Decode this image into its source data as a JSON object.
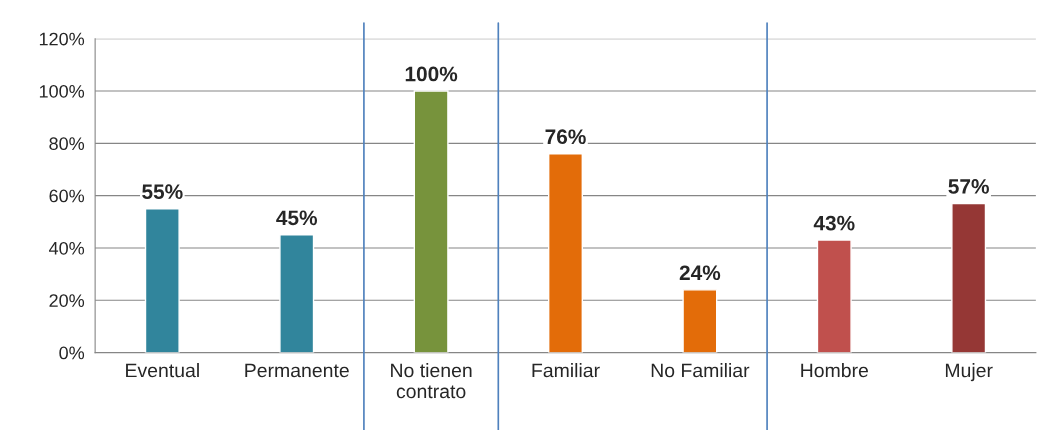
{
  "chart_data": {
    "type": "bar",
    "categories": [
      "Eventual",
      "Permanente",
      "No tienen\ncontrato",
      "Familiar",
      "No Familiar",
      "Hombre",
      "Mujer"
    ],
    "values": [
      55,
      45,
      100,
      76,
      24,
      43,
      57
    ],
    "colors": [
      "#31859c",
      "#31859c",
      "#77933c",
      "#e36c09",
      "#e36c09",
      "#c0504d",
      "#953735"
    ],
    "value_labels": [
      "55%",
      "45%",
      "100%",
      "76%",
      "24%",
      "43%",
      "57%"
    ],
    "ylim": [
      0,
      120
    ],
    "yticks": [
      {
        "value": 0,
        "label": "0%"
      },
      {
        "value": 20,
        "label": "20%"
      },
      {
        "value": 40,
        "label": "40%"
      },
      {
        "value": 60,
        "label": "60%"
      },
      {
        "value": 80,
        "label": "80%"
      },
      {
        "value": 100,
        "label": "100%"
      },
      {
        "value": 120,
        "label": "120%"
      }
    ],
    "grid": "y"
  }
}
